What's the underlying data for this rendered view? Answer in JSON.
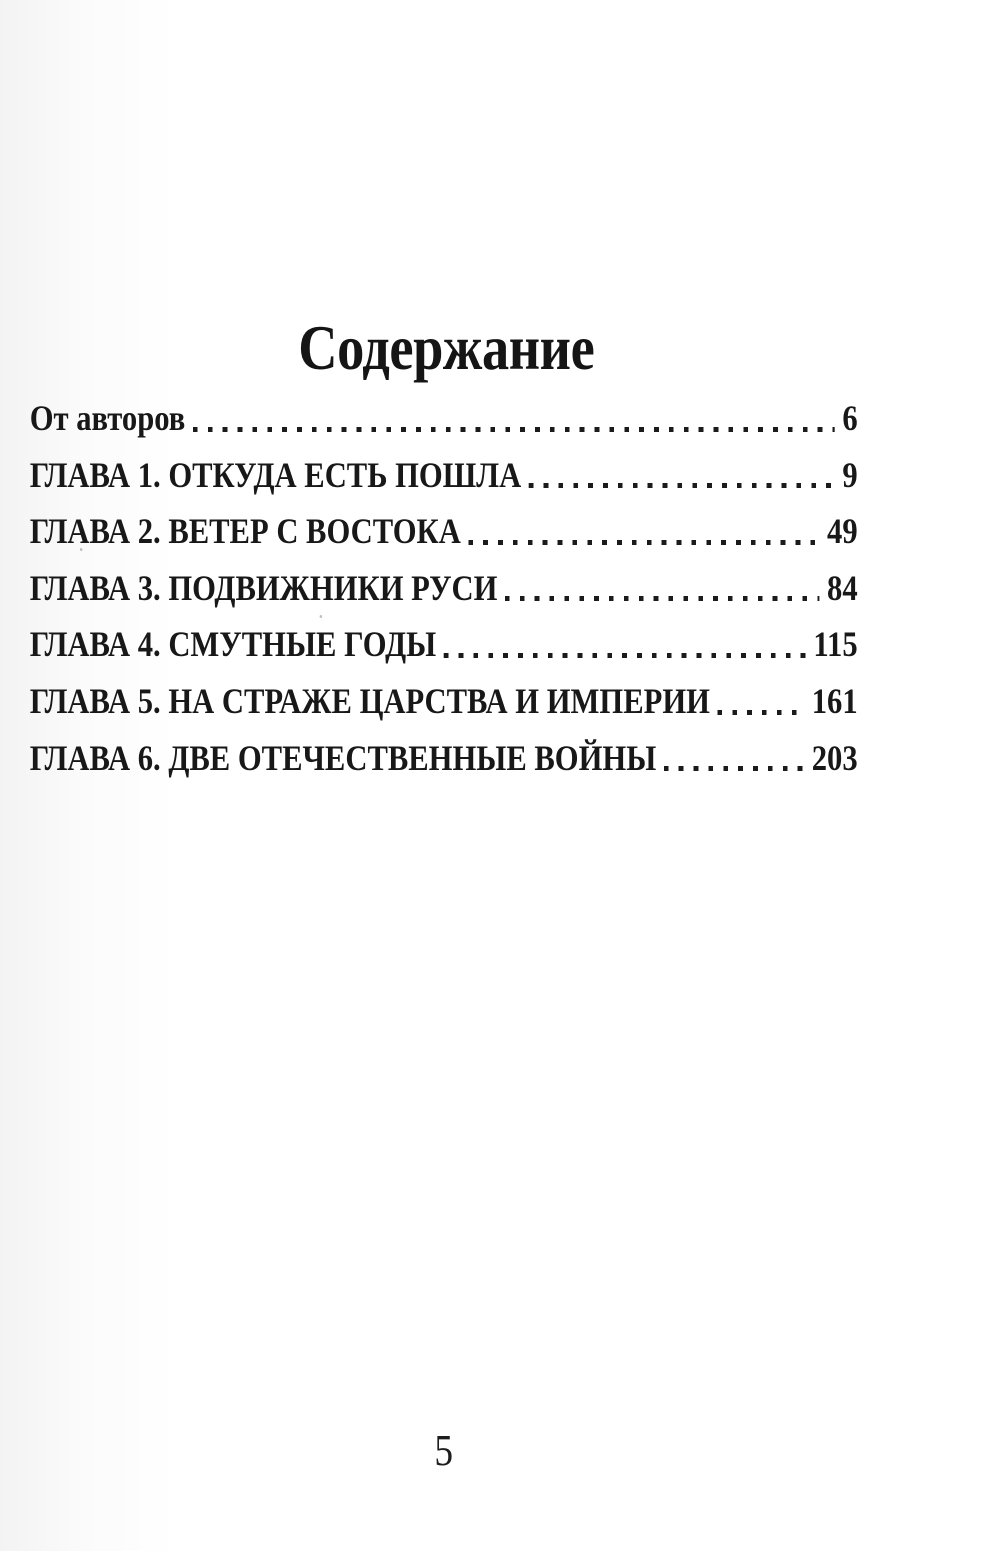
{
  "page": {
    "title": "Содержание",
    "footer_page_number": "5"
  },
  "toc": {
    "entries": [
      {
        "label": "От авторов",
        "page": "6"
      },
      {
        "label": "ГЛАВА 1. ОТКУДА ЕСТЬ ПОШЛА",
        "page": "9"
      },
      {
        "label": "ГЛАВА 2. ВЕТЕР С ВОСТОКА",
        "page": "49"
      },
      {
        "label": "ГЛАВА 3. ПОДВИЖНИКИ РУСИ",
        "page": "84"
      },
      {
        "label": "ГЛАВА 4. СМУТНЫЕ ГОДЫ",
        "page": "115"
      },
      {
        "label": "ГЛАВА 5. НА СТРАЖЕ ЦАРСТВА И ИМПЕРИИ",
        "page": "161"
      },
      {
        "label": "ГЛАВА 6. ДВЕ ОТЕЧЕСТВЕННЫЕ ВОЙНЫ",
        "page": "203"
      }
    ]
  },
  "colors": {
    "ink": "#1a1a1a",
    "paper": "#ffffff"
  }
}
